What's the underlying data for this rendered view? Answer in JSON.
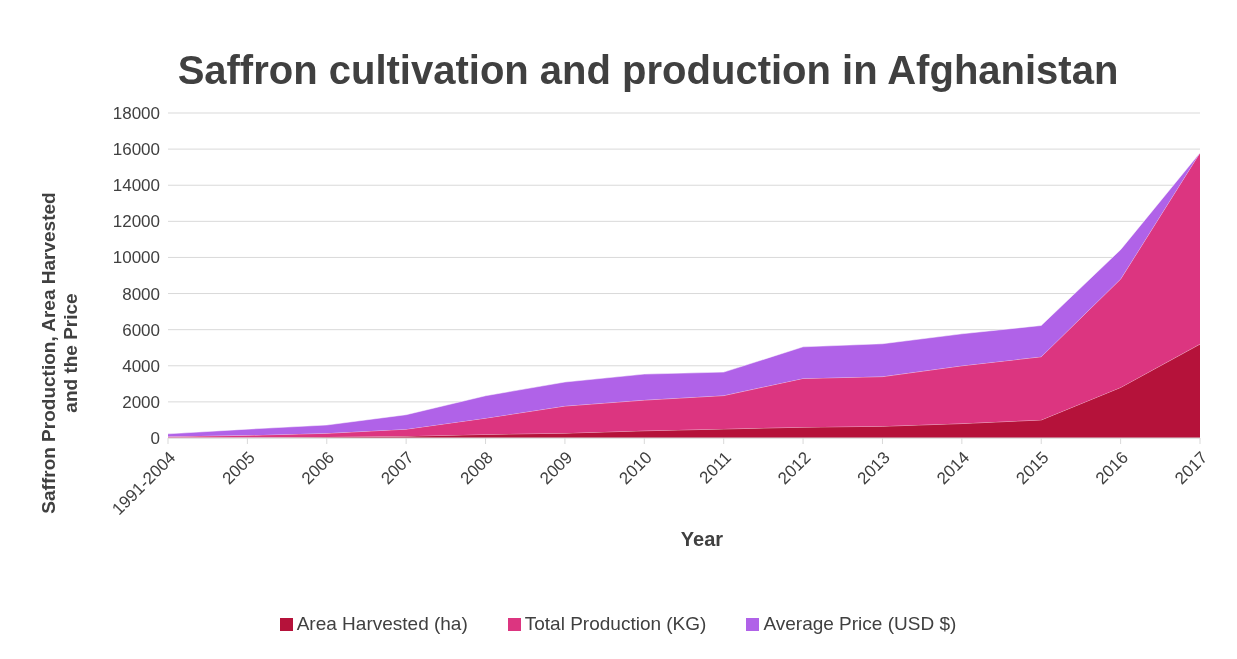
{
  "chart_data": {
    "type": "area",
    "title": "Saffron cultivation and production in Afghanistan",
    "xlabel": "Year",
    "ylabel": "Saffron Production, Area Harvested and the Price",
    "categories": [
      "1991-2004",
      "2005",
      "2006",
      "2007",
      "2008",
      "2009",
      "2010",
      "2011",
      "2012",
      "2013",
      "2014",
      "2015",
      "2016",
      "2017"
    ],
    "stacked": true,
    "series": [
      {
        "name": "Area Harvested (ha)",
        "color": "#b5123a",
        "values": [
          20,
          30,
          50,
          100,
          200,
          270,
          400,
          500,
          600,
          650,
          800,
          1000,
          2800,
          5200
        ]
      },
      {
        "name": "Total Production  (KG)",
        "color": "#dc3580",
        "values": [
          60,
          120,
          210,
          390,
          900,
          1500,
          1700,
          1850,
          2700,
          2750,
          3200,
          3500,
          6000,
          10600
        ]
      },
      {
        "name": "Average Price (USD $)",
        "color": "#b062e8",
        "values": [
          150,
          340,
          460,
          800,
          1240,
          1330,
          1440,
          1300,
          1750,
          1820,
          1770,
          1730,
          1630,
          0
        ]
      }
    ],
    "ylim": [
      0,
      18000
    ],
    "yticks": [
      0,
      2000,
      4000,
      6000,
      8000,
      10000,
      12000,
      14000,
      16000,
      18000
    ],
    "grid": "y",
    "legend": "bottom"
  }
}
